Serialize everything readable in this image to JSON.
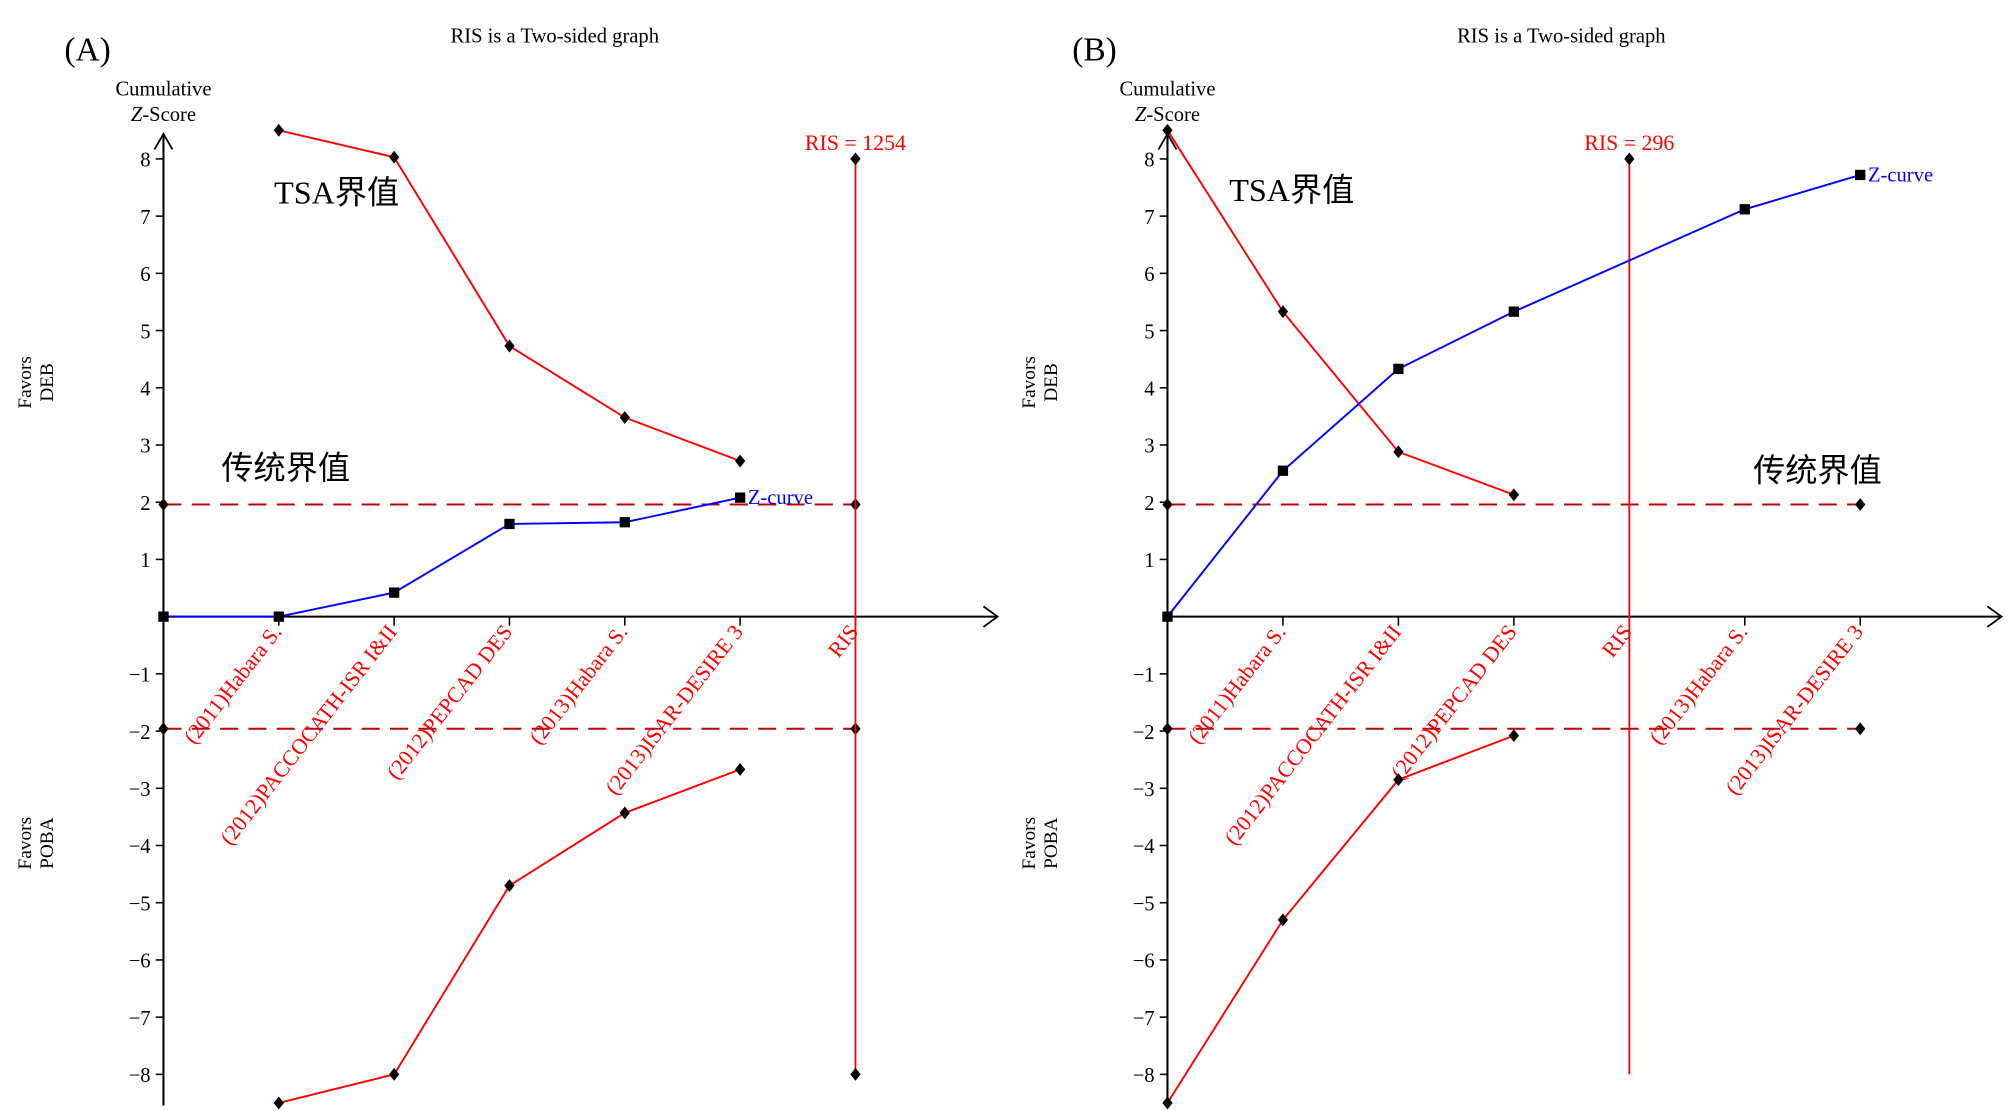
{
  "colors": {
    "boundary": "#ff0000",
    "zcurve": "#0000ff",
    "conventional": "#c00000",
    "axis": "#000000"
  },
  "chart_data": [
    {
      "type": "line",
      "panel_label": "(A)",
      "title": "RIS is a Two-sided graph",
      "ylabel_line1": "Cumulative",
      "ylabel_z": "Z",
      "ylabel_line2": "-Score",
      "favors_top": [
        "Favors",
        "DEB"
      ],
      "favors_bottom": [
        "Favors",
        "POBA"
      ],
      "ylim": [
        -8.5,
        8.5
      ],
      "yticks": [
        8,
        7,
        6,
        5,
        4,
        3,
        2,
        1,
        -1,
        -2,
        -3,
        -4,
        -5,
        -6,
        -7,
        -8
      ],
      "categories": [
        "(2011)Habara S.",
        "(2012)PACCOCATH-ISR I&II",
        "(2012)PEPCAD DES",
        "(2013)Habara S.",
        "(2013)ISAR-DESIRE 3",
        "RIS"
      ],
      "ris_index": 6,
      "ris_label": "RIS = 1254",
      "ris_range": [
        -8,
        8
      ],
      "zcurve_label": "Z-curve",
      "zcurve": {
        "positions": [
          0,
          1,
          2,
          3,
          4,
          5
        ],
        "values": [
          0,
          0,
          0.42,
          1.62,
          1.65,
          2.08
        ]
      },
      "tsa_upper": {
        "positions": [
          1,
          2,
          3,
          4,
          5
        ],
        "values": [
          8.5,
          8.03,
          4.73,
          3.48,
          2.72
        ]
      },
      "tsa_lower": {
        "positions": [
          1,
          2,
          3,
          4,
          5
        ],
        "values": [
          -8.5,
          -8.0,
          -4.7,
          -3.43,
          -2.67
        ]
      },
      "conventional": {
        "value": 1.96,
        "marker_positions": [
          0,
          6
        ]
      },
      "tsa_annotation": "TSA界值",
      "conventional_annotation": "传统界值"
    },
    {
      "type": "line",
      "panel_label": "(B)",
      "title": "RIS is a Two-sided graph",
      "ylabel_line1": "Cumulative",
      "ylabel_z": "Z",
      "ylabel_line2": "-Score",
      "favors_top": [
        "Favors",
        "DEB"
      ],
      "favors_bottom": [
        "Favors",
        "POBA"
      ],
      "ylim": [
        -8.5,
        8.5
      ],
      "yticks": [
        8,
        7,
        6,
        5,
        4,
        3,
        2,
        1,
        -1,
        -2,
        -3,
        -4,
        -5,
        -6,
        -7,
        -8
      ],
      "categories": [
        "(2011)Habara S.",
        "(2012)PACCOCATH-ISR I&II",
        "(2012)PEPCAD DES",
        "RIS",
        "(2013)Habara S.",
        "(2013)ISAR-DESIRE 3"
      ],
      "ris_index": 4,
      "ris_label": "RIS = 296",
      "ris_range": [
        -8,
        8
      ],
      "zcurve_label": "Z-curve",
      "zcurve": {
        "positions": [
          0,
          1,
          2,
          3,
          5,
          6
        ],
        "values": [
          0,
          2.55,
          4.33,
          5.33,
          7.12,
          7.72
        ]
      },
      "tsa_upper": {
        "positions": [
          0,
          1,
          2,
          3
        ],
        "values": [
          8.5,
          5.33,
          2.88,
          2.13
        ]
      },
      "tsa_lower": {
        "positions": [
          0,
          1,
          2,
          3
        ],
        "values": [
          -8.5,
          -5.3,
          -2.85,
          -2.08
        ]
      },
      "conventional": {
        "value": 1.96,
        "marker_positions": [
          0,
          6
        ]
      },
      "tsa_annotation": "TSA界值",
      "conventional_annotation": "传统界值"
    }
  ]
}
